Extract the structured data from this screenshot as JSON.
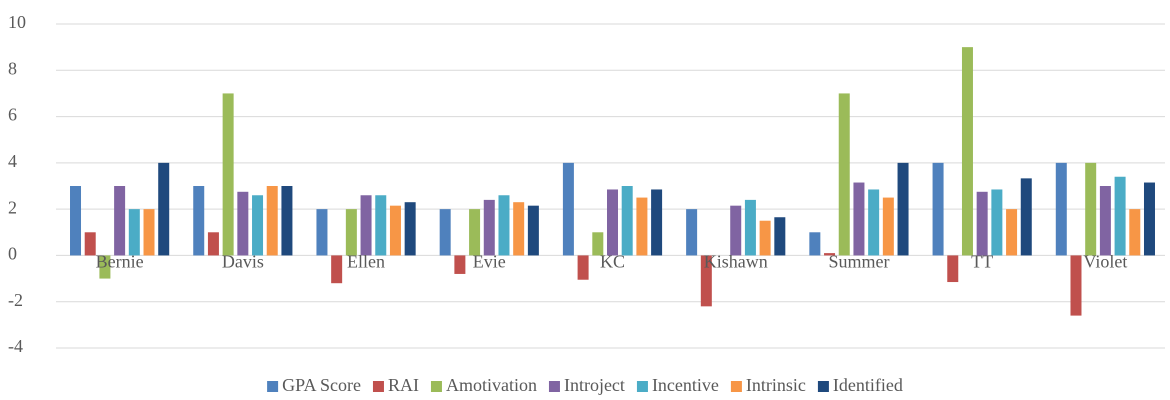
{
  "chart_data": {
    "type": "bar",
    "categories": [
      "Bernie",
      "Davis",
      "Ellen",
      "Evie",
      "KC",
      "Kishawn",
      "Summer",
      "TT",
      "Violet"
    ],
    "series": [
      {
        "name": "GPA Score",
        "color": "#4f81bd",
        "values": [
          3,
          3,
          2,
          2,
          4,
          2,
          1,
          4,
          4
        ]
      },
      {
        "name": "RAI",
        "color": "#c0504d",
        "values": [
          1,
          1,
          -1.2,
          -0.8,
          -1.05,
          -2.2,
          0.1,
          -1.15,
          -2.6
        ]
      },
      {
        "name": "Amotivation",
        "color": "#9bbb59",
        "values": [
          -1,
          7,
          2,
          2,
          1,
          0,
          7,
          9,
          4
        ]
      },
      {
        "name": "Introject",
        "color": "#8064a2",
        "values": [
          3,
          2.75,
          2.6,
          2.4,
          2.85,
          2.15,
          3.15,
          2.75,
          3
        ]
      },
      {
        "name": "Incentive",
        "color": "#4bacc6",
        "values": [
          2,
          2.6,
          2.6,
          2.6,
          3,
          2.4,
          2.85,
          2.85,
          3.4
        ]
      },
      {
        "name": "Intrinsic",
        "color": "#f79646",
        "values": [
          2,
          3,
          2.15,
          2.3,
          2.5,
          1.5,
          2.5,
          2,
          2
        ]
      },
      {
        "name": "Identified",
        "color": "#1f497d",
        "values": [
          4,
          3,
          2.3,
          2.15,
          2.85,
          1.65,
          4,
          3.33,
          3.15
        ]
      }
    ],
    "ylim": [
      -4,
      10
    ],
    "yticks": [
      -4,
      -2,
      0,
      2,
      4,
      6,
      8,
      10
    ],
    "grid": true,
    "legend": "bottom"
  }
}
